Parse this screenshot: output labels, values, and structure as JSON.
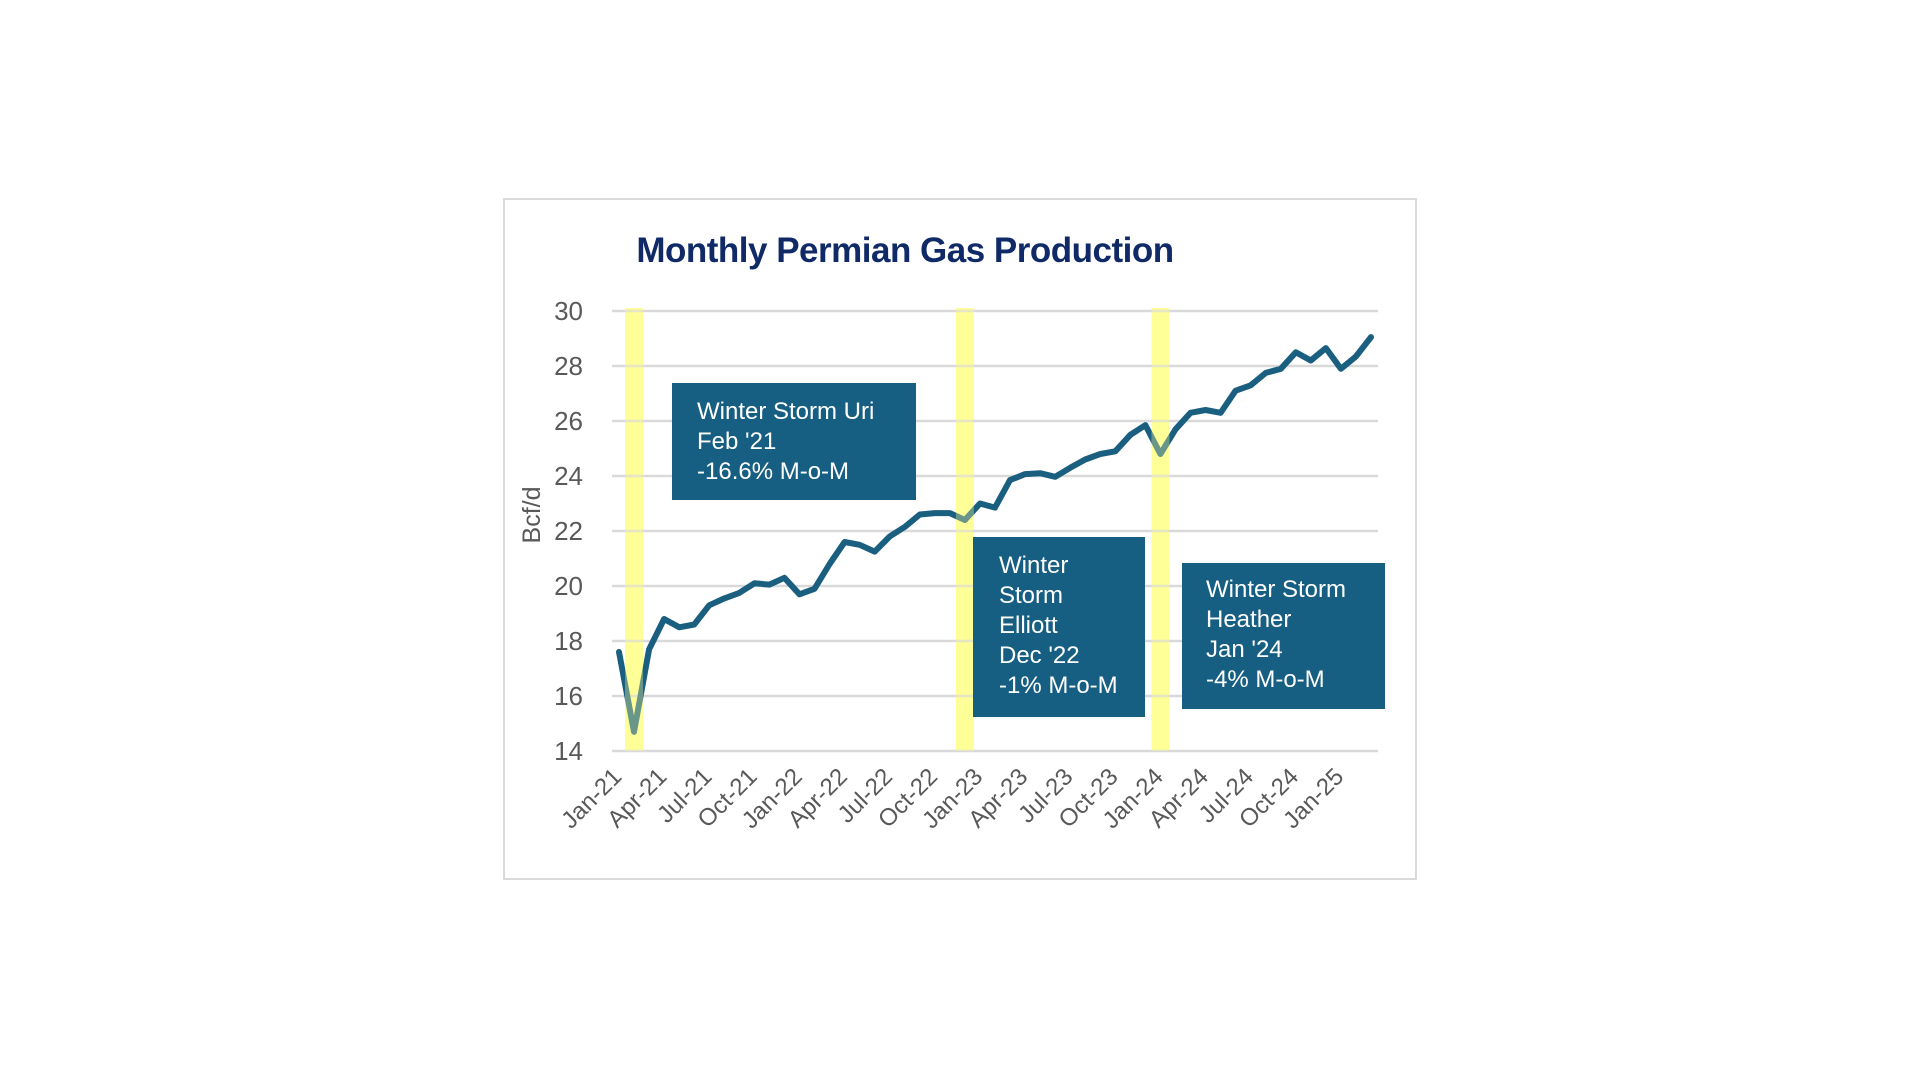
{
  "chart_data": {
    "type": "line",
    "title": "Monthly Permian Gas Production",
    "xlabel": "",
    "ylabel": "Bcf/d",
    "ylim": [
      14,
      30
    ],
    "yticks": [
      14,
      16,
      18,
      20,
      22,
      24,
      26,
      28,
      30
    ],
    "grid": true,
    "legend": "none",
    "x": [
      "Jan-21",
      "Feb-21",
      "Mar-21",
      "Apr-21",
      "May-21",
      "Jun-21",
      "Jul-21",
      "Aug-21",
      "Sep-21",
      "Oct-21",
      "Nov-21",
      "Dec-21",
      "Jan-22",
      "Feb-22",
      "Mar-22",
      "Apr-22",
      "May-22",
      "Jun-22",
      "Jul-22",
      "Aug-22",
      "Sep-22",
      "Oct-22",
      "Nov-22",
      "Dec-22",
      "Jan-23",
      "Feb-23",
      "Mar-23",
      "Apr-23",
      "May-23",
      "Jun-23",
      "Jul-23",
      "Aug-23",
      "Sep-23",
      "Oct-23",
      "Nov-23",
      "Dec-23",
      "Jan-24",
      "Feb-24",
      "Mar-24",
      "Apr-24",
      "May-24",
      "Jun-24",
      "Jul-24",
      "Aug-24",
      "Sep-24",
      "Oct-24",
      "Nov-24",
      "Dec-24",
      "Jan-25",
      "Feb-25",
      "Mar-25"
    ],
    "xtick_labels": [
      "Jan-21",
      "Apr-21",
      "Jul-21",
      "Oct-21",
      "Jan-22",
      "Apr-22",
      "Jul-22",
      "Oct-22",
      "Jan-23",
      "Apr-23",
      "Jul-23",
      "Oct-23",
      "Jan-24",
      "Apr-24",
      "Jul-24",
      "Oct-24",
      "Jan-25"
    ],
    "series": [
      {
        "name": "Permian gas production",
        "color": "#1a5f80",
        "values": [
          17.6,
          14.7,
          17.7,
          18.8,
          18.5,
          18.6,
          19.3,
          19.55,
          19.75,
          20.1,
          20.05,
          20.3,
          19.7,
          19.9,
          20.8,
          21.6,
          21.5,
          21.25,
          21.8,
          22.15,
          22.6,
          22.65,
          22.65,
          22.4,
          23.0,
          22.85,
          23.85,
          24.07,
          24.1,
          23.97,
          24.3,
          24.6,
          24.8,
          24.9,
          25.5,
          25.85,
          24.8,
          25.7,
          26.3,
          26.4,
          26.3,
          27.1,
          27.3,
          27.75,
          27.9,
          28.5,
          28.2,
          28.65,
          27.9,
          28.35,
          29.05
        ]
      }
    ],
    "highlights": [
      {
        "month": "Feb-21",
        "color": "#ffff99"
      },
      {
        "month": "Dec-22",
        "color": "#ffff99"
      },
      {
        "month": "Jan-24",
        "color": "#ffff99"
      }
    ],
    "annotations": [
      {
        "lines": [
          "Winter Storm Uri",
          "Feb '21",
          "-16.6% M-o-M"
        ]
      },
      {
        "lines": [
          "Winter",
          "Storm",
          "Elliott",
          "Dec '22",
          "-1% M-o-M"
        ]
      },
      {
        "lines": [
          "Winter Storm",
          "Heather",
          "Jan '24",
          "-4% M-o-M"
        ]
      }
    ],
    "colors": {
      "title": "#0f2a66",
      "axis_text": "#595959",
      "grid": "#d9d9d9",
      "annotation_bg": "#175f82"
    }
  }
}
